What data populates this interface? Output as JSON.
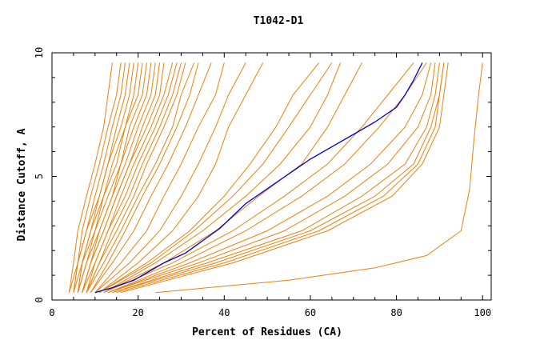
{
  "chart_data": {
    "type": "line",
    "title": "T1042-D1",
    "xlabel": "Percent of Residues (CA)",
    "ylabel": "Distance Cutoff, A",
    "xlim": [
      0,
      102
    ],
    "ylim": [
      0,
      10
    ],
    "x_ticks": [
      0,
      20,
      40,
      60,
      80,
      100
    ],
    "y_ticks": [
      0,
      5,
      10
    ],
    "grid": false,
    "legend": "none",
    "colors": {
      "models": "#e8820e",
      "highlight": "#0000cc"
    },
    "highlighted_series": {
      "points": [
        [
          10,
          0.3
        ],
        [
          14,
          0.5
        ],
        [
          19,
          0.8
        ],
        [
          22,
          1.1
        ],
        [
          26,
          1.5
        ],
        [
          31,
          1.9
        ],
        [
          35,
          2.4
        ],
        [
          39,
          2.9
        ],
        [
          42,
          3.4
        ],
        [
          45,
          3.9
        ],
        [
          50,
          4.5
        ],
        [
          55,
          5.1
        ],
        [
          60,
          5.7
        ],
        [
          65,
          6.2
        ],
        [
          70,
          6.7
        ],
        [
          75,
          7.2
        ],
        [
          80,
          7.8
        ],
        [
          82,
          8.3
        ],
        [
          84,
          8.9
        ],
        [
          86,
          9.6
        ]
      ]
    },
    "series": [
      {
        "points": [
          [
            4,
            0.3
          ],
          [
            5,
            1.5
          ],
          [
            6,
            2.8
          ],
          [
            8,
            4.2
          ],
          [
            10,
            5.5
          ],
          [
            12,
            7
          ],
          [
            13,
            8.3
          ],
          [
            14,
            9.6
          ]
        ]
      },
      {
        "points": [
          [
            4,
            0.3
          ],
          [
            6,
            1.5
          ],
          [
            7,
            2.8
          ],
          [
            9,
            4.2
          ],
          [
            11,
            5.5
          ],
          [
            13,
            7
          ],
          [
            15,
            8.3
          ],
          [
            16,
            9.6
          ]
        ]
      },
      {
        "points": [
          [
            5,
            0.3
          ],
          [
            6,
            1.5
          ],
          [
            8,
            2.8
          ],
          [
            10,
            4.2
          ],
          [
            12,
            5.5
          ],
          [
            14,
            7
          ],
          [
            16,
            8.3
          ],
          [
            17,
            9.6
          ]
        ]
      },
      {
        "points": [
          [
            5,
            0.3
          ],
          [
            6,
            1.5
          ],
          [
            8,
            2.8
          ],
          [
            11,
            4.2
          ],
          [
            13,
            5.5
          ],
          [
            15,
            7
          ],
          [
            17,
            8.3
          ],
          [
            18,
            9.6
          ]
        ]
      },
      {
        "points": [
          [
            5,
            0.3
          ],
          [
            7,
            1.5
          ],
          [
            9,
            2.8
          ],
          [
            11,
            4.2
          ],
          [
            13,
            5.5
          ],
          [
            16,
            7
          ],
          [
            18,
            8.3
          ],
          [
            19,
            9.6
          ]
        ]
      },
      {
        "points": [
          [
            6,
            0.3
          ],
          [
            7,
            1.5
          ],
          [
            9,
            2.8
          ],
          [
            12,
            4.2
          ],
          [
            14,
            5.5
          ],
          [
            17,
            7
          ],
          [
            19,
            8.3
          ],
          [
            20,
            9.6
          ]
        ]
      },
      {
        "points": [
          [
            6,
            0.3
          ],
          [
            7,
            1.5
          ],
          [
            10,
            2.8
          ],
          [
            12,
            4.2
          ],
          [
            15,
            5.5
          ],
          [
            17,
            7
          ],
          [
            20,
            8.3
          ],
          [
            21,
            9.6
          ]
        ]
      },
      {
        "points": [
          [
            6,
            0.3
          ],
          [
            8,
            1.5
          ],
          [
            10,
            2.8
          ],
          [
            13,
            4.2
          ],
          [
            16,
            5.5
          ],
          [
            18,
            7
          ],
          [
            21,
            8.3
          ],
          [
            22,
            9.6
          ]
        ]
      },
      {
        "points": [
          [
            6,
            0.3
          ],
          [
            8,
            1.5
          ],
          [
            11,
            2.8
          ],
          [
            14,
            4.2
          ],
          [
            16,
            5.5
          ],
          [
            19,
            7
          ],
          [
            22,
            8.3
          ],
          [
            23,
            9.6
          ]
        ]
      },
      {
        "points": [
          [
            7,
            0.3
          ],
          [
            9,
            1.5
          ],
          [
            11,
            2.8
          ],
          [
            14,
            4.2
          ],
          [
            17,
            5.5
          ],
          [
            20,
            7
          ],
          [
            23,
            8.3
          ],
          [
            24,
            9.6
          ]
        ]
      },
      {
        "points": [
          [
            7,
            0.3
          ],
          [
            9,
            1.5
          ],
          [
            12,
            2.8
          ],
          [
            15,
            4.2
          ],
          [
            18,
            5.5
          ],
          [
            21,
            7
          ],
          [
            24,
            8.3
          ],
          [
            25,
            9.6
          ]
        ]
      },
      {
        "points": [
          [
            7,
            0.3
          ],
          [
            9,
            1.5
          ],
          [
            12,
            2.8
          ],
          [
            15,
            4.2
          ],
          [
            18,
            5.5
          ],
          [
            22,
            7
          ],
          [
            25,
            8.3
          ],
          [
            26,
            9.6
          ]
        ]
      },
      {
        "points": [
          [
            7,
            0.3
          ],
          [
            10,
            1.5
          ],
          [
            13,
            2.8
          ],
          [
            16,
            4.2
          ],
          [
            19,
            5.5
          ],
          [
            23,
            7
          ],
          [
            26,
            8.3
          ],
          [
            28,
            9.6
          ]
        ]
      },
      {
        "points": [
          [
            8,
            0.3
          ],
          [
            10,
            1.5
          ],
          [
            13,
            2.8
          ],
          [
            17,
            4.2
          ],
          [
            20,
            5.5
          ],
          [
            24,
            7
          ],
          [
            27,
            8.3
          ],
          [
            29,
            9.6
          ]
        ]
      },
      {
        "points": [
          [
            8,
            0.3
          ],
          [
            11,
            1.5
          ],
          [
            14,
            2.8
          ],
          [
            18,
            4.2
          ],
          [
            21,
            5.5
          ],
          [
            25,
            7
          ],
          [
            28,
            8.3
          ],
          [
            30,
            9.6
          ]
        ]
      },
      {
        "points": [
          [
            8,
            0.3
          ],
          [
            11,
            1.5
          ],
          [
            15,
            2.8
          ],
          [
            19,
            4.2
          ],
          [
            22,
            5.5
          ],
          [
            26,
            7
          ],
          [
            29,
            8.3
          ],
          [
            31,
            9.6
          ]
        ]
      },
      {
        "points": [
          [
            8,
            0.3
          ],
          [
            12,
            1.5
          ],
          [
            16,
            2.8
          ],
          [
            20,
            4.2
          ],
          [
            24,
            5.5
          ],
          [
            28,
            7
          ],
          [
            30,
            8.3
          ],
          [
            33,
            9.6
          ]
        ]
      },
      {
        "points": [
          [
            9,
            0.3
          ],
          [
            13,
            1.5
          ],
          [
            17,
            2.8
          ],
          [
            21,
            4.2
          ],
          [
            25,
            5.5
          ],
          [
            29,
            7
          ],
          [
            32,
            8.3
          ],
          [
            34,
            9.6
          ]
        ]
      },
      {
        "points": [
          [
            9,
            0.3
          ],
          [
            14,
            1.5
          ],
          [
            19,
            2.8
          ],
          [
            23,
            4.2
          ],
          [
            27,
            5.5
          ],
          [
            31,
            7
          ],
          [
            34,
            8.3
          ],
          [
            37,
            9.6
          ]
        ]
      },
      {
        "points": [
          [
            10,
            0.3
          ],
          [
            16,
            1.5
          ],
          [
            22,
            2.8
          ],
          [
            26,
            4.2
          ],
          [
            30,
            5.5
          ],
          [
            34,
            7
          ],
          [
            38,
            8.3
          ],
          [
            40,
            9.6
          ]
        ]
      },
      {
        "points": [
          [
            10,
            0.3
          ],
          [
            18,
            1.5
          ],
          [
            25,
            2.8
          ],
          [
            30,
            4.2
          ],
          [
            34,
            5.5
          ],
          [
            38,
            7
          ],
          [
            41,
            8.3
          ],
          [
            45,
            9.6
          ]
        ]
      },
      {
        "points": [
          [
            11,
            0.3
          ],
          [
            20,
            1.5
          ],
          [
            28,
            2.8
          ],
          [
            34,
            4.2
          ],
          [
            38,
            5.5
          ],
          [
            41,
            7
          ],
          [
            45,
            8.3
          ],
          [
            49,
            9.6
          ]
        ]
      },
      {
        "points": [
          [
            11,
            0.3
          ],
          [
            22,
            1.5
          ],
          [
            32,
            2.8
          ],
          [
            40,
            4.2
          ],
          [
            46,
            5.5
          ],
          [
            52,
            7
          ],
          [
            56,
            8.3
          ],
          [
            62,
            9.6
          ]
        ]
      },
      {
        "points": [
          [
            11,
            0.3
          ],
          [
            23,
            1.5
          ],
          [
            33,
            2.8
          ],
          [
            42,
            4.2
          ],
          [
            49,
            5.5
          ],
          [
            55,
            7
          ],
          [
            60,
            8.3
          ],
          [
            65,
            9.6
          ]
        ]
      },
      {
        "points": [
          [
            12,
            0.3
          ],
          [
            24,
            1.5
          ],
          [
            35,
            2.8
          ],
          [
            45,
            4.2
          ],
          [
            53,
            5.5
          ],
          [
            60,
            7
          ],
          [
            64,
            8.3
          ],
          [
            67,
            9.6
          ]
        ]
      },
      {
        "points": [
          [
            12,
            0.3
          ],
          [
            26,
            1.5
          ],
          [
            38,
            2.8
          ],
          [
            48,
            4.2
          ],
          [
            58,
            5.5
          ],
          [
            64,
            7
          ],
          [
            68,
            8.3
          ],
          [
            72,
            9.6
          ]
        ]
      },
      {
        "points": [
          [
            12,
            0.3
          ],
          [
            28,
            1.5
          ],
          [
            42,
            2.8
          ],
          [
            54,
            4.2
          ],
          [
            64,
            5.5
          ],
          [
            72,
            7
          ],
          [
            78,
            8.3
          ],
          [
            84,
            9.6
          ]
        ]
      },
      {
        "points": [
          [
            13,
            0.3
          ],
          [
            30,
            1.5
          ],
          [
            45,
            2.8
          ],
          [
            58,
            4.2
          ],
          [
            68,
            5.5
          ],
          [
            76,
            7
          ],
          [
            82,
            8.3
          ],
          [
            87,
            9.6
          ]
        ]
      },
      {
        "points": [
          [
            13,
            0.3
          ],
          [
            32,
            1.5
          ],
          [
            50,
            2.8
          ],
          [
            64,
            4.2
          ],
          [
            74,
            5.5
          ],
          [
            82,
            7
          ],
          [
            86,
            8.3
          ],
          [
            88,
            9.6
          ]
        ]
      },
      {
        "points": [
          [
            13,
            0.3
          ],
          [
            34,
            1.5
          ],
          [
            54,
            2.8
          ],
          [
            68,
            4.2
          ],
          [
            78,
            5.5
          ],
          [
            85,
            7
          ],
          [
            88,
            8.3
          ],
          [
            89,
            9.6
          ]
        ]
      },
      {
        "points": [
          [
            14,
            0.3
          ],
          [
            36,
            1.5
          ],
          [
            58,
            2.8
          ],
          [
            72,
            4.2
          ],
          [
            82,
            5.5
          ],
          [
            87,
            7
          ],
          [
            89,
            8.3
          ],
          [
            90,
            9.6
          ]
        ]
      },
      {
        "points": [
          [
            14,
            0.3
          ],
          [
            38,
            1.5
          ],
          [
            60,
            2.8
          ],
          [
            75,
            4.2
          ],
          [
            84,
            5.5
          ],
          [
            88,
            7
          ],
          [
            90,
            8.3
          ],
          [
            91,
            9.6
          ]
        ]
      },
      {
        "points": [
          [
            15,
            0.3
          ],
          [
            40,
            1.5
          ],
          [
            62,
            2.8
          ],
          [
            77,
            4.2
          ],
          [
            85,
            5.5
          ],
          [
            89,
            7
          ],
          [
            90,
            8.3
          ],
          [
            91,
            9.6
          ]
        ]
      },
      {
        "points": [
          [
            16,
            0.3
          ],
          [
            42,
            1.5
          ],
          [
            64,
            2.8
          ],
          [
            79,
            4.2
          ],
          [
            86,
            5.5
          ],
          [
            90,
            7
          ],
          [
            91,
            8.3
          ],
          [
            92,
            9.6
          ]
        ]
      },
      {
        "points": [
          [
            24,
            0.3
          ],
          [
            55,
            0.8
          ],
          [
            75,
            1.3
          ],
          [
            87,
            1.8
          ],
          [
            95,
            2.8
          ],
          [
            97,
            4.5
          ],
          [
            98,
            6.5
          ],
          [
            99,
            8.2
          ],
          [
            100,
            9.6
          ]
        ]
      }
    ]
  }
}
